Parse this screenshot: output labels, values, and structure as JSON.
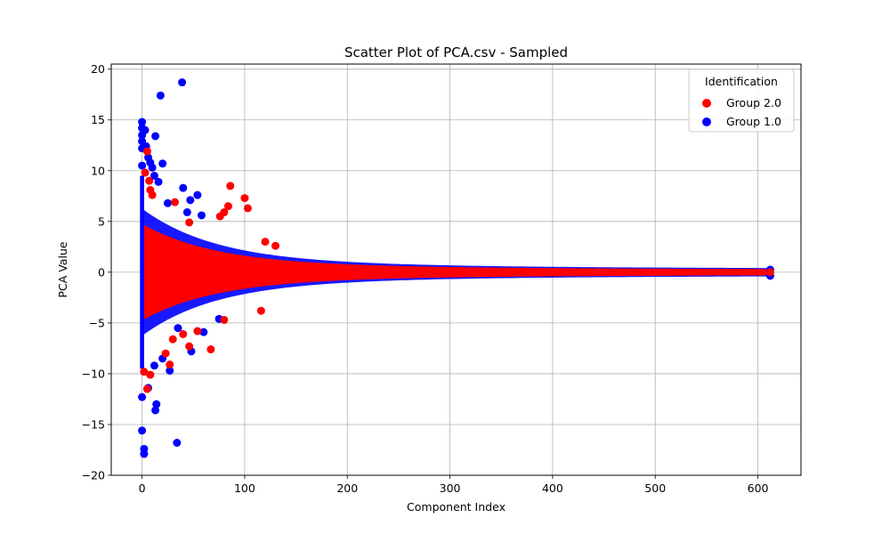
{
  "chart_data": {
    "type": "scatter",
    "title": "Scatter Plot of PCA.csv - Sampled",
    "xlabel": "Component Index",
    "ylabel": "PCA Value",
    "xlim": [
      -30,
      642
    ],
    "ylim": [
      -20,
      20.5
    ],
    "xticks": [
      0,
      100,
      200,
      300,
      400,
      500,
      600
    ],
    "yticks": [
      -20,
      -15,
      -10,
      -5,
      0,
      5,
      10,
      15,
      20
    ],
    "x_tick_labels": [
      "0",
      "100",
      "200",
      "300",
      "400",
      "500",
      "600"
    ],
    "y_tick_labels": [
      "−20",
      "−15",
      "−10",
      "−5",
      "0",
      "5",
      "10",
      "15",
      "20"
    ],
    "grid": true,
    "legend": {
      "title": "Identification",
      "placement": "top-right",
      "entries": [
        "Group 2.0",
        "Group 1.0"
      ]
    },
    "series": [
      {
        "name": "Group 1.0",
        "color": "#0000ff",
        "points": [
          [
            0,
            14.8
          ],
          [
            0,
            14.2
          ],
          [
            0,
            13.5
          ],
          [
            0,
            12.9
          ],
          [
            0,
            12.2
          ],
          [
            0,
            10.5
          ],
          [
            0,
            -12.3
          ],
          [
            0,
            -15.6
          ],
          [
            2,
            -17.9
          ],
          [
            2,
            -17.4
          ],
          [
            3,
            14.0
          ],
          [
            4,
            12.4
          ],
          [
            6,
            11.3
          ],
          [
            8,
            10.8
          ],
          [
            10,
            10.3
          ],
          [
            13,
            13.4
          ],
          [
            18,
            17.4
          ],
          [
            20,
            10.7
          ],
          [
            16,
            8.9
          ],
          [
            12,
            9.5
          ],
          [
            39,
            18.7
          ],
          [
            34,
            -16.8
          ],
          [
            13,
            -13.6
          ],
          [
            14,
            -13.0
          ],
          [
            6,
            -11.4
          ],
          [
            27,
            -9.7
          ],
          [
            48,
            -7.8
          ],
          [
            40,
            8.3
          ],
          [
            54,
            7.6
          ],
          [
            44,
            5.9
          ],
          [
            58,
            5.6
          ],
          [
            12,
            -9.2
          ],
          [
            20,
            -8.5
          ],
          [
            25,
            6.8
          ],
          [
            47,
            7.1
          ],
          [
            60,
            -5.9
          ],
          [
            35,
            -5.5
          ],
          [
            75,
            -4.6
          ],
          [
            612,
            0.25
          ],
          [
            612,
            -0.35
          ]
        ]
      },
      {
        "name": "Group 2.0",
        "color": "#ff0000",
        "points": [
          [
            5,
            11.9
          ],
          [
            3,
            9.8
          ],
          [
            7,
            9.0
          ],
          [
            8,
            8.1
          ],
          [
            10,
            7.6
          ],
          [
            86,
            8.5
          ],
          [
            100,
            7.3
          ],
          [
            103,
            6.3
          ],
          [
            84,
            6.5
          ],
          [
            80,
            5.9
          ],
          [
            76,
            5.5
          ],
          [
            5,
            -11.5
          ],
          [
            8,
            -10.1
          ],
          [
            2,
            -9.8
          ],
          [
            27,
            -9.1
          ],
          [
            23,
            -8.0
          ],
          [
            46,
            -7.3
          ],
          [
            67,
            -7.6
          ],
          [
            30,
            -6.6
          ],
          [
            40,
            -6.1
          ],
          [
            54,
            -5.8
          ],
          [
            80,
            -4.7
          ],
          [
            116,
            -3.8
          ],
          [
            32,
            6.9
          ],
          [
            46,
            4.9
          ],
          [
            120,
            3.0
          ],
          [
            130,
            2.6
          ],
          [
            612,
            0.0
          ]
        ]
      }
    ]
  }
}
